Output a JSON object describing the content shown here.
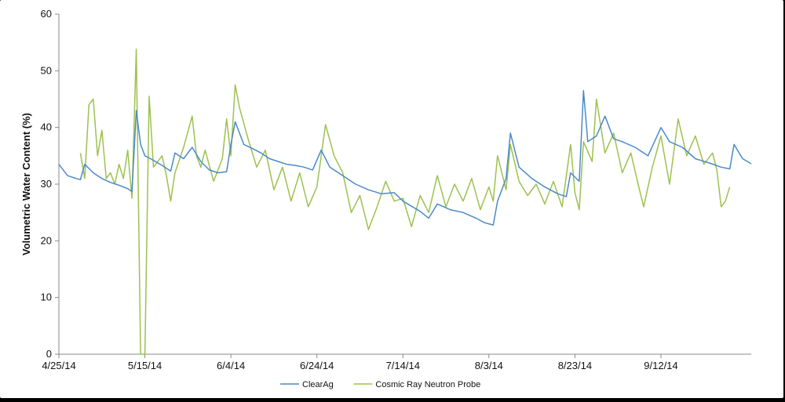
{
  "chart_data": {
    "type": "line",
    "title": "",
    "xlabel": "",
    "ylabel": "Volumetric Water Content (%)",
    "ylim": [
      0,
      60
    ],
    "yticks": [
      0,
      10,
      20,
      30,
      40,
      50,
      60
    ],
    "xlim": [
      "2014-04-25",
      "2014-10-03"
    ],
    "xticks": [
      {
        "date": "2014-04-25",
        "label": "4/25/14"
      },
      {
        "date": "2014-05-15",
        "label": "5/15/14"
      },
      {
        "date": "2014-06-04",
        "label": "6/4/14"
      },
      {
        "date": "2014-06-24",
        "label": "6/24/14"
      },
      {
        "date": "2014-07-14",
        "label": "7/14/14"
      },
      {
        "date": "2014-08-03",
        "label": "8/3/14"
      },
      {
        "date": "2014-08-23",
        "label": "8/23/14"
      },
      {
        "date": "2014-09-12",
        "label": "9/12/14"
      }
    ],
    "grid": false,
    "legend_position": "bottom",
    "series": [
      {
        "name": "ClearAg",
        "color": "#4a8ac9",
        "points": [
          [
            "2014-04-25",
            33.5
          ],
          [
            "2014-04-27",
            31.5
          ],
          [
            "2014-04-29",
            31.0
          ],
          [
            "2014-04-30",
            30.8
          ],
          [
            "2014-05-01",
            33.5
          ],
          [
            "2014-05-03",
            32.0
          ],
          [
            "2014-05-05",
            31.0
          ],
          [
            "2014-05-07",
            30.3
          ],
          [
            "2014-05-09",
            29.8
          ],
          [
            "2014-05-11",
            29.2
          ],
          [
            "2014-05-12",
            28.7
          ],
          [
            "2014-05-13",
            43.0
          ],
          [
            "2014-05-14",
            37.0
          ],
          [
            "2014-05-15",
            35.0
          ],
          [
            "2014-05-17",
            34.2
          ],
          [
            "2014-05-19",
            33.3
          ],
          [
            "2014-05-21",
            32.3
          ],
          [
            "2014-05-22",
            35.5
          ],
          [
            "2014-05-24",
            34.5
          ],
          [
            "2014-05-26",
            36.5
          ],
          [
            "2014-05-28",
            34.0
          ],
          [
            "2014-05-30",
            32.5
          ],
          [
            "2014-06-01",
            32.0
          ],
          [
            "2014-06-03",
            32.2
          ],
          [
            "2014-06-04",
            37.0
          ],
          [
            "2014-06-05",
            41.0
          ],
          [
            "2014-06-07",
            37.0
          ],
          [
            "2014-06-09",
            36.3
          ],
          [
            "2014-06-11",
            35.5
          ],
          [
            "2014-06-13",
            34.5
          ],
          [
            "2014-06-15",
            34.0
          ],
          [
            "2014-06-17",
            33.5
          ],
          [
            "2014-06-19",
            33.3
          ],
          [
            "2014-06-21",
            33.0
          ],
          [
            "2014-06-23",
            32.5
          ],
          [
            "2014-06-25",
            36.0
          ],
          [
            "2014-06-27",
            33.0
          ],
          [
            "2014-06-30",
            31.5
          ],
          [
            "2014-07-03",
            30.0
          ],
          [
            "2014-07-06",
            29.0
          ],
          [
            "2014-07-09",
            28.3
          ],
          [
            "2014-07-12",
            28.5
          ],
          [
            "2014-07-14",
            27.0
          ],
          [
            "2014-07-18",
            25.2
          ],
          [
            "2014-07-20",
            24.0
          ],
          [
            "2014-07-22",
            26.5
          ],
          [
            "2014-07-25",
            25.5
          ],
          [
            "2014-07-28",
            25.0
          ],
          [
            "2014-07-31",
            24.0
          ],
          [
            "2014-08-02",
            23.2
          ],
          [
            "2014-08-04",
            22.8
          ],
          [
            "2014-08-05",
            27.0
          ],
          [
            "2014-08-07",
            31.0
          ],
          [
            "2014-08-08",
            39.0
          ],
          [
            "2014-08-10",
            33.0
          ],
          [
            "2014-08-13",
            31.0
          ],
          [
            "2014-08-16",
            29.5
          ],
          [
            "2014-08-19",
            28.3
          ],
          [
            "2014-08-21",
            27.8
          ],
          [
            "2014-08-22",
            32.0
          ],
          [
            "2014-08-24",
            30.5
          ],
          [
            "2014-08-25",
            46.5
          ],
          [
            "2014-08-26",
            37.5
          ],
          [
            "2014-08-28",
            38.5
          ],
          [
            "2014-08-30",
            42.0
          ],
          [
            "2014-09-01",
            38.0
          ],
          [
            "2014-09-03",
            37.5
          ],
          [
            "2014-09-06",
            36.5
          ],
          [
            "2014-09-09",
            35.0
          ],
          [
            "2014-09-12",
            40.0
          ],
          [
            "2014-09-14",
            37.5
          ],
          [
            "2014-09-17",
            36.5
          ],
          [
            "2014-09-20",
            34.5
          ],
          [
            "2014-09-23",
            33.8
          ],
          [
            "2014-09-26",
            33.0
          ],
          [
            "2014-09-28",
            32.7
          ],
          [
            "2014-09-29",
            37.0
          ],
          [
            "2014-10-01",
            34.5
          ],
          [
            "2014-10-03",
            33.6
          ]
        ]
      },
      {
        "name": "Cosmic Ray Neutron Probe",
        "color": "#9dc14f",
        "points": [
          [
            "2014-04-30",
            35.5
          ],
          [
            "2014-05-01",
            31.0
          ],
          [
            "2014-05-02",
            44.0
          ],
          [
            "2014-05-03",
            45.0
          ],
          [
            "2014-05-04",
            35.0
          ],
          [
            "2014-05-05",
            39.5
          ],
          [
            "2014-05-06",
            31.0
          ],
          [
            "2014-05-07",
            32.0
          ],
          [
            "2014-05-08",
            30.0
          ],
          [
            "2014-05-09",
            33.5
          ],
          [
            "2014-05-10",
            31.0
          ],
          [
            "2014-05-11",
            36.0
          ],
          [
            "2014-05-12",
            27.5
          ],
          [
            "2014-05-13",
            53.8
          ],
          [
            "2014-05-14",
            0.0
          ],
          [
            "2014-05-15",
            0.0
          ],
          [
            "2014-05-16",
            45.5
          ],
          [
            "2014-05-17",
            33.0
          ],
          [
            "2014-05-19",
            35.0
          ],
          [
            "2014-05-20",
            31.5
          ],
          [
            "2014-05-21",
            27.0
          ],
          [
            "2014-05-22",
            32.0
          ],
          [
            "2014-05-24",
            36.5
          ],
          [
            "2014-05-26",
            42.0
          ],
          [
            "2014-05-27",
            35.0
          ],
          [
            "2014-05-28",
            33.0
          ],
          [
            "2014-05-29",
            36.0
          ],
          [
            "2014-05-31",
            30.5
          ],
          [
            "2014-06-02",
            34.5
          ],
          [
            "2014-06-03",
            41.5
          ],
          [
            "2014-06-04",
            35.0
          ],
          [
            "2014-06-05",
            47.5
          ],
          [
            "2014-06-06",
            43.5
          ],
          [
            "2014-06-08",
            38.0
          ],
          [
            "2014-06-10",
            33.0
          ],
          [
            "2014-06-12",
            36.0
          ],
          [
            "2014-06-14",
            29.0
          ],
          [
            "2014-06-16",
            33.0
          ],
          [
            "2014-06-18",
            27.0
          ],
          [
            "2014-06-20",
            32.0
          ],
          [
            "2014-06-22",
            26.0
          ],
          [
            "2014-06-24",
            29.5
          ],
          [
            "2014-06-26",
            40.5
          ],
          [
            "2014-06-28",
            35.0
          ],
          [
            "2014-06-30",
            32.0
          ],
          [
            "2014-07-02",
            25.0
          ],
          [
            "2014-07-04",
            28.0
          ],
          [
            "2014-07-06",
            22.0
          ],
          [
            "2014-07-08",
            26.0
          ],
          [
            "2014-07-10",
            30.5
          ],
          [
            "2014-07-12",
            27.0
          ],
          [
            "2014-07-14",
            27.5
          ],
          [
            "2014-07-16",
            22.5
          ],
          [
            "2014-07-18",
            28.0
          ],
          [
            "2014-07-20",
            25.0
          ],
          [
            "2014-07-22",
            31.5
          ],
          [
            "2014-07-24",
            26.0
          ],
          [
            "2014-07-26",
            30.0
          ],
          [
            "2014-07-28",
            27.0
          ],
          [
            "2014-07-30",
            31.0
          ],
          [
            "2014-08-01",
            25.5
          ],
          [
            "2014-08-03",
            29.5
          ],
          [
            "2014-08-04",
            27.0
          ],
          [
            "2014-08-05",
            35.0
          ],
          [
            "2014-08-07",
            29.0
          ],
          [
            "2014-08-08",
            37.0
          ],
          [
            "2014-08-10",
            30.5
          ],
          [
            "2014-08-12",
            28.0
          ],
          [
            "2014-08-14",
            30.0
          ],
          [
            "2014-08-16",
            26.5
          ],
          [
            "2014-08-18",
            30.5
          ],
          [
            "2014-08-20",
            26.0
          ],
          [
            "2014-08-22",
            37.0
          ],
          [
            "2014-08-23",
            28.5
          ],
          [
            "2014-08-24",
            25.5
          ],
          [
            "2014-08-25",
            37.5
          ],
          [
            "2014-08-27",
            34.0
          ],
          [
            "2014-08-28",
            45.0
          ],
          [
            "2014-08-30",
            35.5
          ],
          [
            "2014-09-01",
            39.0
          ],
          [
            "2014-09-03",
            32.0
          ],
          [
            "2014-09-05",
            35.5
          ],
          [
            "2014-09-07",
            29.0
          ],
          [
            "2014-09-08",
            26.0
          ],
          [
            "2014-09-10",
            33.0
          ],
          [
            "2014-09-12",
            38.5
          ],
          [
            "2014-09-14",
            30.0
          ],
          [
            "2014-09-16",
            41.5
          ],
          [
            "2014-09-18",
            35.0
          ],
          [
            "2014-09-20",
            38.5
          ],
          [
            "2014-09-22",
            33.5
          ],
          [
            "2014-09-24",
            35.5
          ],
          [
            "2014-09-25",
            32.5
          ],
          [
            "2014-09-26",
            26.0
          ],
          [
            "2014-09-27",
            27.0
          ],
          [
            "2014-09-28",
            29.5
          ]
        ]
      }
    ]
  }
}
